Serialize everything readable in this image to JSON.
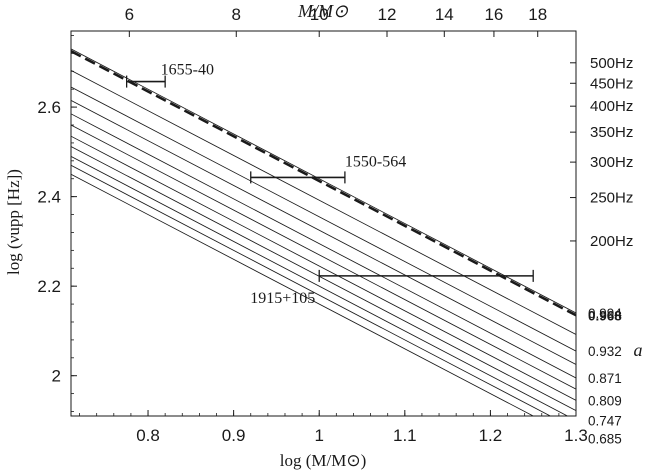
{
  "chart_data": {
    "type": "line",
    "xlabel": "log (M/M⊙)",
    "ylabel": "log (νupp [Hz])",
    "top_axis_label": "M/M⊙",
    "right_axis_label": "a",
    "xlim": [
      0.71,
      1.3
    ],
    "ylim": [
      1.91,
      2.77
    ],
    "x_ticks": [
      0.8,
      0.9,
      1.0,
      1.1,
      1.2,
      1.3
    ],
    "x_tick_labels": [
      "0.8",
      "0.9",
      "1",
      "1.1",
      "1.2",
      "1.3"
    ],
    "y_ticks": [
      2.0,
      2.2,
      2.4,
      2.6
    ],
    "y_tick_labels": [
      "2",
      "2.2",
      "2.4",
      "2.6"
    ],
    "top_ticks_mass": [
      6,
      8,
      10,
      12,
      14,
      16,
      18
    ],
    "top_tick_labels": [
      "6",
      "8",
      "10",
      "12",
      "14",
      "16",
      "18"
    ],
    "right_freq_ticks_hz": [
      500,
      450,
      400,
      350,
      300,
      250,
      200
    ],
    "right_freq_labels": [
      "500Hz",
      "450Hz",
      "400Hz",
      "350Hz",
      "300Hz",
      "250Hz",
      "200Hz"
    ],
    "slope": -1,
    "spin_lines": [
      {
        "a": "0.994",
        "logv_at_logM_1": 2.44,
        "style": "solid",
        "bold": false
      },
      {
        "a": null,
        "logv_at_logM_1": 2.392,
        "style": "solid",
        "bold": false
      },
      {
        "a": "0.968",
        "logv_at_logM_1": 2.435,
        "style": "dashed",
        "bold": true
      },
      {
        "a": "0.932",
        "logv_at_logM_1": 2.355,
        "style": "solid",
        "bold": false
      },
      {
        "a": null,
        "logv_at_logM_1": 2.325,
        "style": "solid",
        "bold": false
      },
      {
        "a": "0.871",
        "logv_at_logM_1": 2.295,
        "style": "solid",
        "bold": false
      },
      {
        "a": null,
        "logv_at_logM_1": 2.27,
        "style": "solid",
        "bold": false
      },
      {
        "a": "0.809",
        "logv_at_logM_1": 2.245,
        "style": "solid",
        "bold": false
      },
      {
        "a": null,
        "logv_at_logM_1": 2.222,
        "style": "solid",
        "bold": false
      },
      {
        "a": "0.747",
        "logv_at_logM_1": 2.2,
        "style": "solid",
        "bold": false
      },
      {
        "a": null,
        "logv_at_logM_1": 2.18,
        "style": "solid",
        "bold": false
      },
      {
        "a": "0.685",
        "logv_at_logM_1": 2.16,
        "style": "solid",
        "bold": false
      }
    ],
    "sources": [
      {
        "name": "1655-40",
        "logM_min": 0.775,
        "logM_max": 0.82,
        "logv": 2.657
      },
      {
        "name": "1550-564",
        "logM_min": 0.92,
        "logM_max": 1.03,
        "logv": 2.443
      },
      {
        "name": "1915+105",
        "logM_min": 1.0,
        "logM_max": 1.25,
        "logv": 2.223
      }
    ]
  }
}
